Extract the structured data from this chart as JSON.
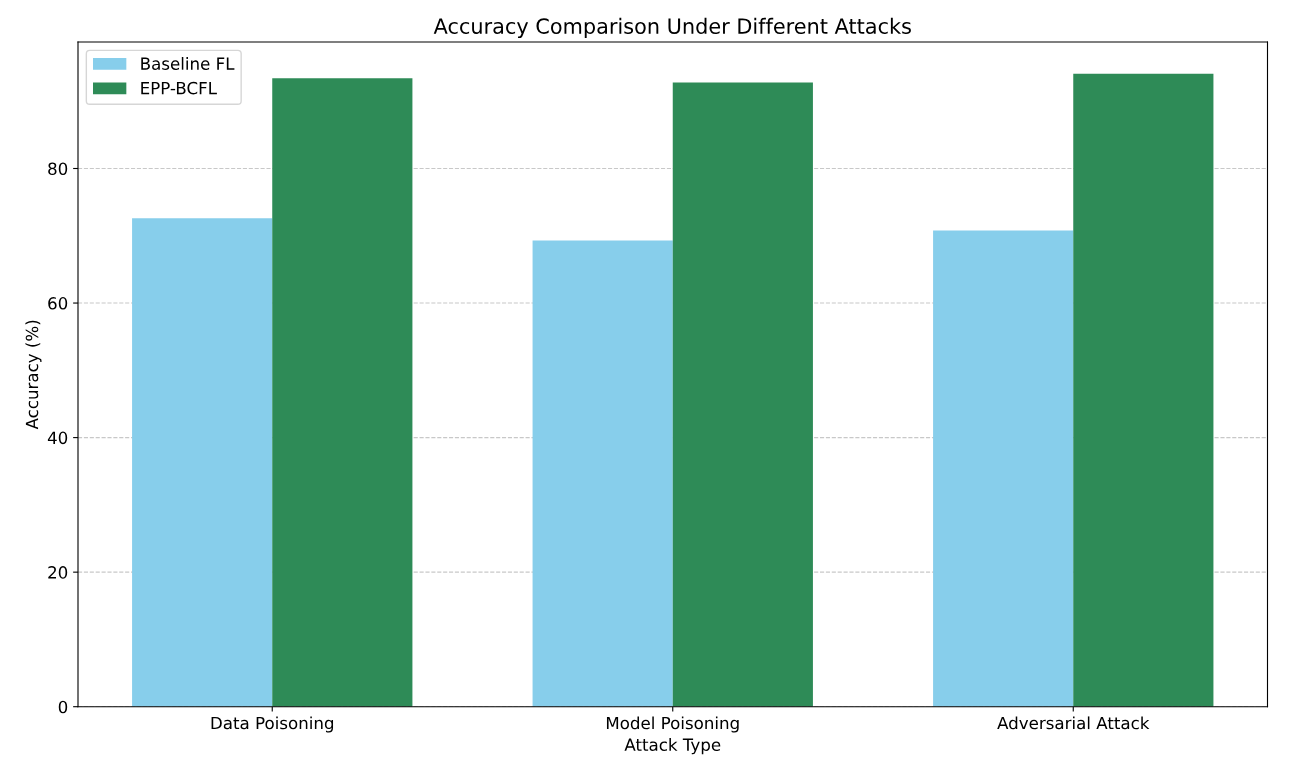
{
  "chart_data": {
    "type": "bar",
    "title": "Accuracy Comparison Under Different Attacks",
    "xlabel": "Attack Type",
    "ylabel": "Accuracy (%)",
    "categories": [
      "Data Poisoning",
      "Model Poisoning",
      "Adversarial Attack"
    ],
    "series": [
      {
        "name": "Baseline FL",
        "color": "#87ceeb",
        "values": [
          72.6,
          69.3,
          70.8
        ]
      },
      {
        "name": "EPP-BCFL",
        "color": "#2e8b57",
        "values": [
          93.4,
          92.8,
          94.1
        ]
      }
    ],
    "ylim": [
      0,
      98.8
    ],
    "yticks": [
      0,
      20,
      40,
      60,
      80
    ],
    "grid": "y",
    "legend": "top left"
  }
}
